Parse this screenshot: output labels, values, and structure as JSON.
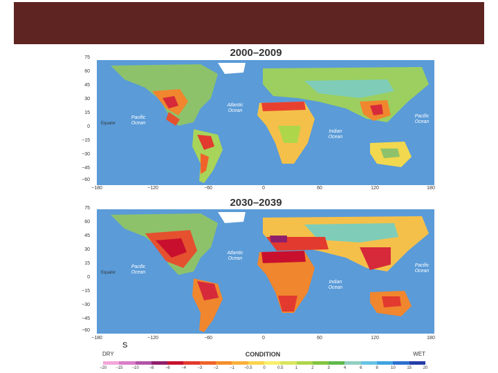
{
  "panels": [
    {
      "title": "2000–2009"
    },
    {
      "title": "2030–2039"
    }
  ],
  "y_ticks": [
    "75",
    "60",
    "45",
    "30",
    "15",
    "0",
    "−15",
    "−30",
    "−45",
    "−60"
  ],
  "x_ticks": [
    "−180",
    "−120",
    "−60",
    "0",
    "60",
    "120",
    "180"
  ],
  "map_labels": {
    "equator": "Equator",
    "atlantic": "Atlantic\nOcean",
    "pacific": "Pacific\nOcean",
    "indian": "Indian\nOcean"
  },
  "stray_text": "S",
  "legend": {
    "dry": "DRY",
    "wet": "WET",
    "title": "CONDITION",
    "ticks": [
      "−20",
      "−15",
      "−10",
      "−8",
      "−6",
      "−4",
      "−3",
      "−2",
      "−1",
      "−0.5",
      "0",
      "0.5",
      "1",
      "2",
      "3",
      "4",
      "6",
      "8",
      "10",
      "15",
      "20"
    ],
    "colors": [
      "#f2a6d9",
      "#d97dc7",
      "#b254a6",
      "#8f1f6b",
      "#c8102e",
      "#e23a2f",
      "#f0622a",
      "#f58e2a",
      "#f9b13a",
      "#fbd34c",
      "#f6ef6a",
      "#d8e65c",
      "#aed64a",
      "#82c440",
      "#5fb84a",
      "#8fd0c2",
      "#67c3e3",
      "#3fa3e0",
      "#2b6fd1",
      "#243da6"
    ]
  }
}
